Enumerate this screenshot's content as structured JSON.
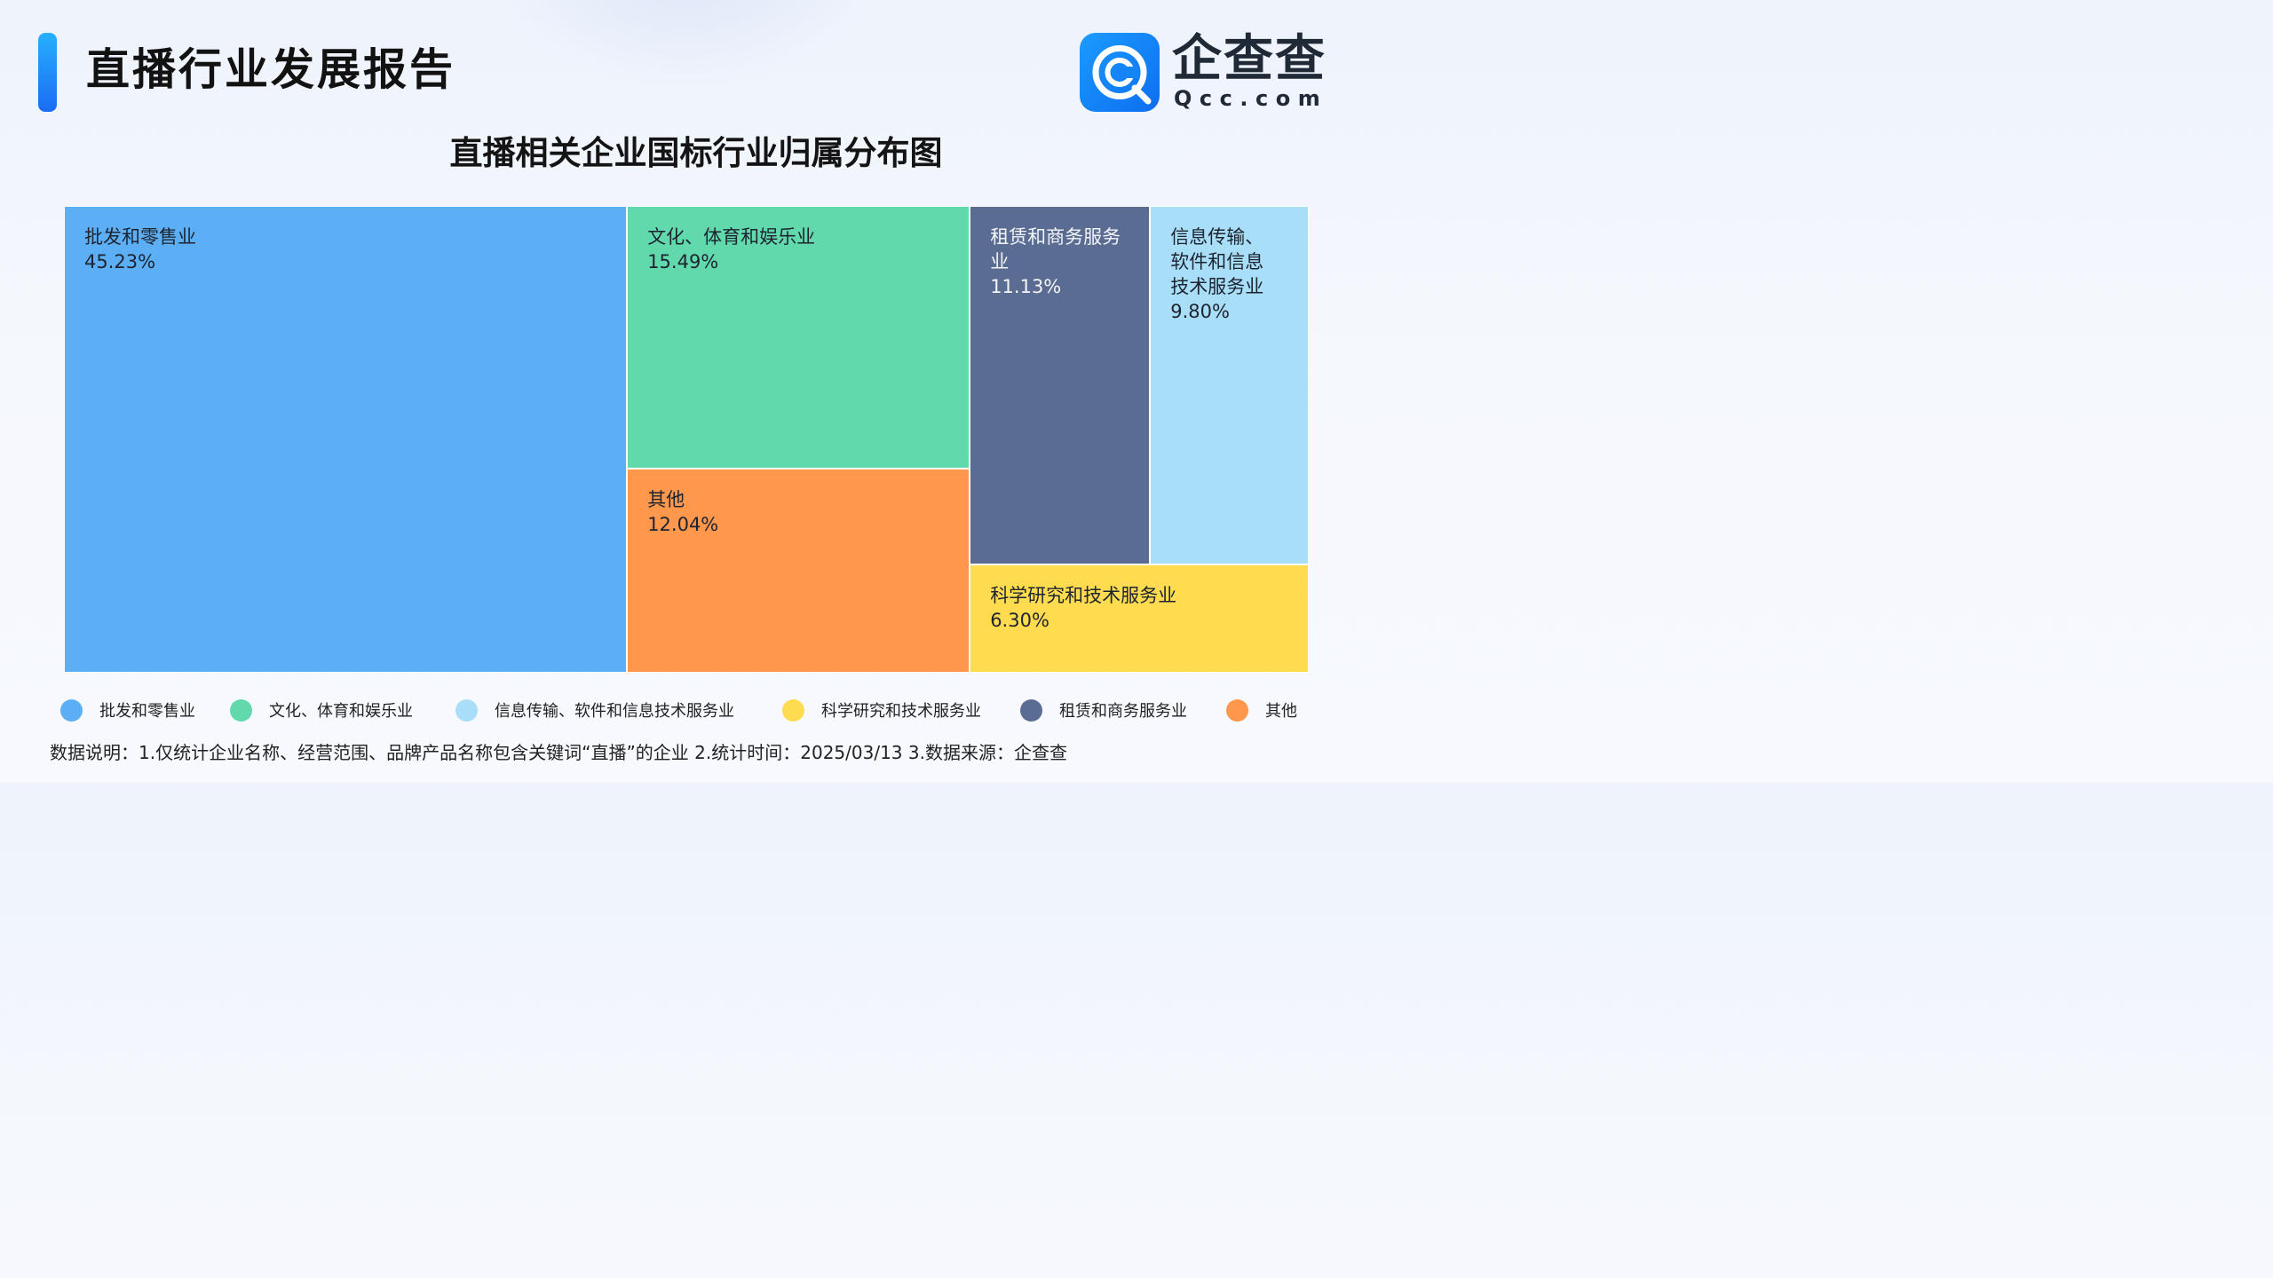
{
  "header": {
    "report_title": "直播行业发展报告",
    "logo_name": "企查查",
    "logo_domain": "Qcc.com"
  },
  "chart_data": {
    "type": "treemap",
    "title": "直播相关企业国标行业归属分布图",
    "unit": "%",
    "items": [
      {
        "name": "批发和零售业",
        "label": "批发和零售业",
        "value": 45.23,
        "display": "45.23%",
        "color": "#5caff5"
      },
      {
        "name": "文化、体育和娱乐业",
        "label": "文化、体育和娱乐业",
        "value": 15.49,
        "display": "15.49%",
        "color": "#61d9ac"
      },
      {
        "name": "其他",
        "label": "其他",
        "value": 12.04,
        "display": "12.04%",
        "color": "#ff974c"
      },
      {
        "name": "租赁和商务服务业",
        "label": "租赁和商务服务业",
        "value": 11.13,
        "display": "11.13%",
        "color": "#5b6c92"
      },
      {
        "name": "信息传输、软件和信息技术服务业",
        "label": "信息传输、软件和信息技术服务业",
        "value": 9.8,
        "display": "9.80%",
        "color": "#a9def9"
      },
      {
        "name": "科学研究和技术服务业",
        "label": "科学研究和技术服务业",
        "value": 6.3,
        "display": "6.30%",
        "color": "#ffdb4f"
      }
    ],
    "legend": [
      {
        "label": "批发和零售业",
        "color": "#5caff5"
      },
      {
        "label": "文化、体育和娱乐业",
        "color": "#61d9ac"
      },
      {
        "label": "信息传输、软件和信息技术服务业",
        "color": "#a9def9"
      },
      {
        "label": "科学研究和技术服务业",
        "color": "#ffdb4f"
      },
      {
        "label": "租赁和商务服务业",
        "color": "#5b6c92"
      },
      {
        "label": "其他",
        "color": "#ff974c"
      }
    ]
  },
  "footer": {
    "note": "数据说明：1.仅统计企业名称、经营范围、品牌产品名称包含关键词“直播”的企业   2.统计时间：2025/03/13    3.数据来源：企查查"
  }
}
